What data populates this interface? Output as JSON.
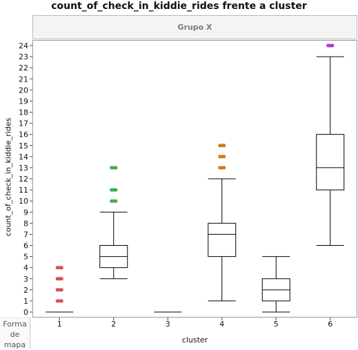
{
  "chart_data": {
    "type": "boxplot",
    "title": "count_of_check_in_kiddie_rides frente a cluster",
    "group_header": "Grupo X",
    "xlabel": "cluster",
    "ylabel": "count_of_check_in_kiddie_rides",
    "ylim": [
      -0.5,
      24.5
    ],
    "yticks": [
      0,
      1,
      2,
      3,
      4,
      5,
      6,
      7,
      8,
      9,
      10,
      11,
      12,
      13,
      14,
      15,
      16,
      17,
      18,
      19,
      20,
      21,
      22,
      23,
      24
    ],
    "grid": false,
    "categories": [
      "1",
      "2",
      "3",
      "4",
      "5",
      "6"
    ],
    "boxes": [
      {
        "cluster": "1",
        "min": 0,
        "q1": 0,
        "median": 0,
        "q3": 0,
        "max": 0,
        "outliers": [
          1,
          2,
          3,
          4
        ],
        "outlier_color": "#d64f5a"
      },
      {
        "cluster": "2",
        "min": 3,
        "q1": 4,
        "median": 5,
        "q3": 6,
        "max": 9,
        "outliers": [
          10,
          11,
          13
        ],
        "outlier_color": "#3fae49"
      },
      {
        "cluster": "3",
        "min": 0,
        "q1": 0,
        "median": 0,
        "q3": 0,
        "max": 0,
        "outliers": [],
        "outlier_color": "#555555"
      },
      {
        "cluster": "4",
        "min": 1,
        "q1": 5,
        "median": 7,
        "q3": 8,
        "max": 12,
        "outliers": [
          13,
          14,
          15
        ],
        "outlier_color": "#d47a1f"
      },
      {
        "cluster": "5",
        "min": 0,
        "q1": 1,
        "median": 2,
        "q3": 3,
        "max": 5,
        "outliers": [],
        "outlier_color": "#555555"
      },
      {
        "cluster": "6",
        "min": 6,
        "q1": 11,
        "median": 13,
        "q3": 16,
        "max": 23,
        "outliers": [
          24
        ],
        "outlier_color": "#a43fd0"
      }
    ]
  },
  "footer": {
    "map_shape_label": "Forma de mapa"
  }
}
